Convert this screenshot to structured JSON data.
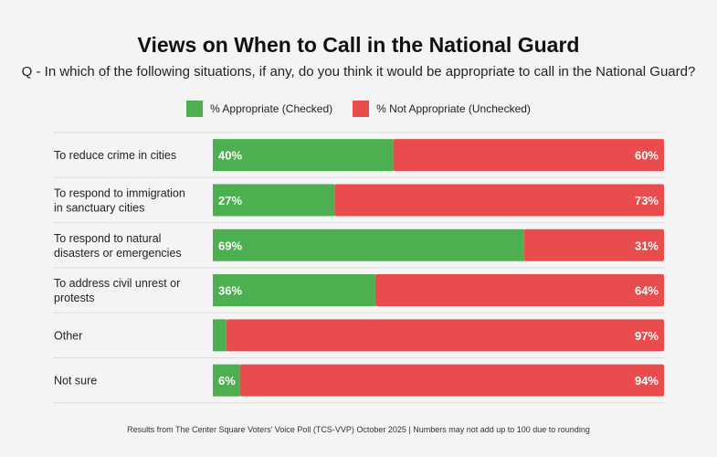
{
  "chart_data": {
    "type": "bar",
    "orientation": "horizontal",
    "stacked": true,
    "title": "Views on When to Call in the National Guard",
    "subtitle": "Q - In which of the following situations, if any, do you think it would be appropriate to call in the National Guard?",
    "categories": [
      [
        "To reduce crime in cities"
      ],
      [
        "To respond to immigration",
        "in sanctuary cities"
      ],
      [
        "To respond to natural",
        "disasters or emergencies"
      ],
      [
        "To address civil unrest or",
        "protests"
      ],
      [
        "Other"
      ],
      [
        "Not sure"
      ]
    ],
    "series": [
      {
        "name": "% Appropriate (Checked)",
        "color": "#4caf50",
        "values": [
          40,
          27,
          69,
          36,
          3,
          6
        ],
        "labels": [
          "40%",
          "27%",
          "69%",
          "36%",
          "",
          "6%"
        ]
      },
      {
        "name": "% Not Appropriate (Unchecked)",
        "color": "#e84c4c",
        "values": [
          60,
          73,
          31,
          64,
          97,
          94
        ],
        "labels": [
          "60%",
          "73%",
          "31%",
          "64%",
          "97%",
          "94%"
        ]
      }
    ],
    "xlim": [
      0,
      100
    ],
    "legend_position": "top",
    "grid": false,
    "footnote": "Results from The Center Square Voters' Voice Poll (TCS-VVP) October 2025 | Numbers may not add up to 100 due to rounding"
  }
}
